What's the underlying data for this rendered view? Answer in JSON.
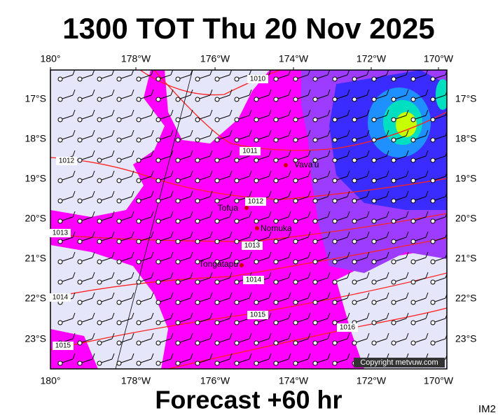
{
  "title": "1300 TOT Thu 20 Nov 2025",
  "longitude_labels": [
    "180°",
    "178°W",
    "176°W",
    "174°W",
    "172°W",
    "170°W"
  ],
  "latitude_labels": [
    "17°S",
    "18°S",
    "19°S",
    "20°S",
    "21°S",
    "22°S",
    "23°S"
  ],
  "places": [
    "Vava'u",
    "Tofua",
    "Nomuka",
    "Tongatapu"
  ],
  "isobar_labels": [
    "1010",
    "1011",
    "1012",
    "1012",
    "1013",
    "1013",
    "1014",
    "1014",
    "1015",
    "1015",
    "1016"
  ],
  "copyright": "Copyright metvuw.com",
  "footer": "Forecast +60 hr",
  "image_id": "IM2"
}
